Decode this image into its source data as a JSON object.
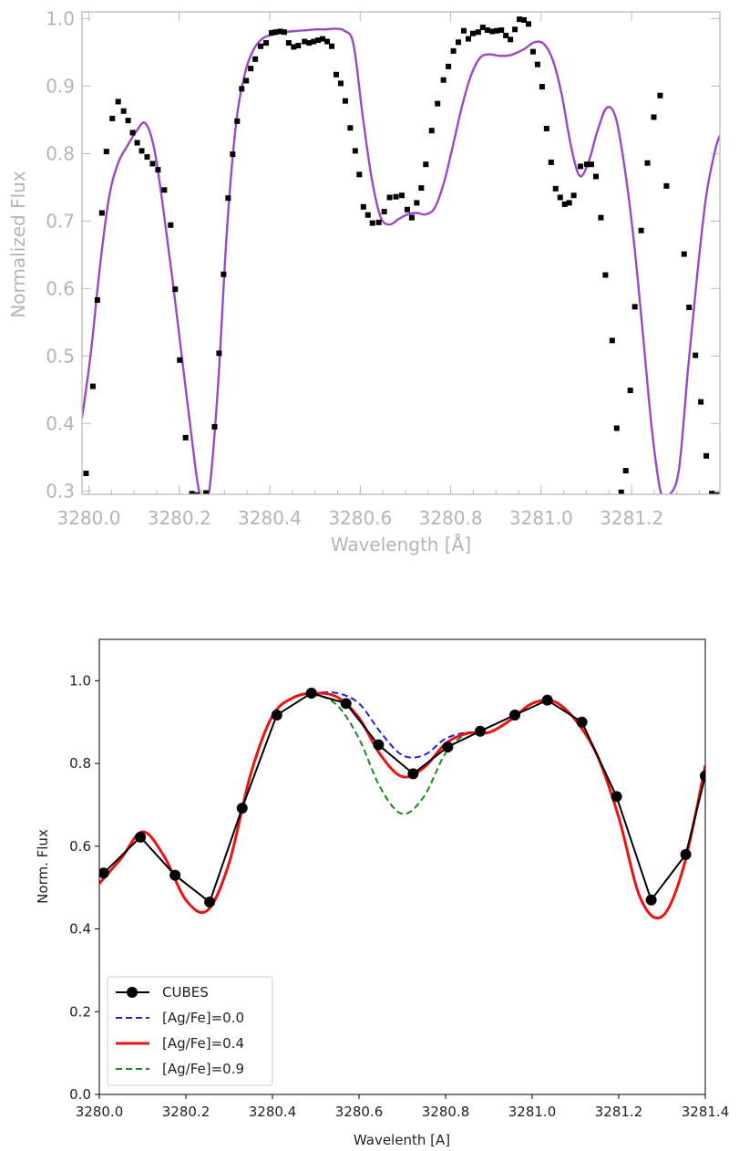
{
  "chart_data": [
    {
      "type": "line",
      "title": "",
      "xlabel": "Wavelength [Å]",
      "ylabel": "Normalized Flux",
      "xlim": [
        3279.985,
        3281.395
      ],
      "ylim": [
        0.295,
        1.01
      ],
      "xticks": [
        3280.0,
        3280.2,
        3280.4,
        3280.6,
        3280.8,
        3281.0,
        3281.2
      ],
      "xtick_labels": [
        "3280.0",
        "3280.2",
        "3280.4",
        "3280.6",
        "3280.8",
        "3281.0",
        "3281.2"
      ],
      "yticks": [
        0.3,
        0.4,
        0.5,
        0.6,
        0.7,
        0.8,
        0.9,
        1.0
      ],
      "ytick_labels": [
        "0.3",
        "0.4",
        "0.5",
        "0.6",
        "0.7",
        "0.8",
        "0.9",
        "1.0"
      ],
      "colors": {
        "observed": "#000000",
        "model": "#9a48c4",
        "model_thin": "#d88888",
        "axis": "#bbbbbb"
      },
      "series": [
        {
          "role": "observed",
          "x": [
            3279.994,
            3280.009,
            3280.019,
            3280.029,
            3280.039,
            3280.052,
            3280.065,
            3280.077,
            3280.087,
            3280.097,
            3280.107,
            3280.117,
            3280.129,
            3280.141,
            3280.153,
            3280.167,
            3280.181,
            3280.191,
            3280.201,
            3280.214,
            3280.228,
            3280.239,
            3280.259,
            3280.278,
            3280.288,
            3280.298,
            3280.308,
            3280.318,
            3280.328,
            3280.338,
            3280.348,
            3280.358,
            3280.368,
            3280.38,
            3280.392,
            3280.404,
            3280.413,
            3280.423,
            3280.432,
            3280.442,
            3280.453,
            3280.463,
            3280.477,
            3280.487,
            3280.497,
            3280.507,
            3280.517,
            3280.527,
            3280.537,
            3280.547,
            3280.557,
            3280.567,
            3280.578,
            3280.589,
            3280.598,
            3280.607,
            3280.617,
            3280.627,
            3280.641,
            3280.653,
            3280.665,
            3280.679,
            3280.692,
            3280.704,
            3280.714,
            3280.725,
            3280.735,
            3280.745,
            3280.758,
            3280.771,
            3280.784,
            3280.795,
            3280.806,
            3280.817,
            3280.829,
            3280.839,
            3280.849,
            3280.861,
            3280.871,
            3280.881,
            3280.892,
            3280.902,
            3280.912,
            3280.922,
            3280.932,
            3280.942,
            3280.952,
            3280.962,
            3280.972,
            3280.982,
            3280.992,
            3281.002,
            3281.012,
            3281.022,
            3281.032,
            3281.042,
            3281.052,
            3281.062,
            3281.072,
            3281.087,
            3281.101,
            3281.111,
            3281.121,
            3281.132,
            3281.142,
            3281.157,
            3281.167,
            3281.177,
            3281.187,
            3281.197,
            3281.207,
            3281.221,
            3281.235,
            3281.249,
            3281.263,
            3281.277,
            3281.316,
            3281.327,
            3281.341,
            3281.353,
            3281.365,
            3281.377,
            3281.389
          ],
          "y": [
            0.326,
            0.455,
            0.583,
            0.712,
            0.803,
            0.852,
            0.877,
            0.863,
            0.849,
            0.831,
            0.816,
            0.804,
            0.795,
            0.785,
            0.776,
            0.746,
            0.694,
            0.599,
            0.494,
            0.379,
            0.296,
            0.294,
            0.297,
            0.395,
            0.504,
            0.621,
            0.734,
            0.799,
            0.848,
            0.896,
            0.908,
            0.926,
            0.94,
            0.959,
            0.964,
            0.979,
            0.98,
            0.981,
            0.98,
            0.964,
            0.958,
            0.96,
            0.966,
            0.964,
            0.966,
            0.968,
            0.97,
            0.966,
            0.959,
            0.917,
            0.904,
            0.878,
            0.838,
            0.804,
            0.769,
            0.721,
            0.709,
            0.697,
            0.698,
            0.714,
            0.735,
            0.736,
            0.738,
            0.717,
            0.705,
            0.727,
            0.749,
            0.784,
            0.834,
            0.874,
            0.909,
            0.929,
            0.952,
            0.965,
            0.982,
            0.97,
            0.978,
            0.98,
            0.987,
            0.983,
            0.981,
            0.982,
            0.983,
            0.975,
            0.969,
            0.984,
            0.999,
            0.998,
            0.992,
            0.951,
            0.932,
            0.899,
            0.837,
            0.787,
            0.748,
            0.735,
            0.725,
            0.727,
            0.738,
            0.781,
            0.784,
            0.784,
            0.766,
            0.705,
            0.62,
            0.523,
            0.393,
            0.298,
            0.33,
            0.449,
            0.573,
            0.686,
            0.786,
            0.854,
            0.886,
            0.752,
            0.651,
            0.572,
            0.501,
            0.432,
            0.352,
            0.296,
            0.294
          ]
        },
        {
          "role": "model",
          "x": [
            3279.985,
            3280.005,
            3280.025,
            3280.045,
            3280.065,
            3280.085,
            3280.105,
            3280.125,
            3280.145,
            3280.165,
            3280.185,
            3280.205,
            3280.225,
            3280.245,
            3280.265,
            3280.285,
            3280.305,
            3280.325,
            3280.345,
            3280.365,
            3280.385,
            3280.405,
            3280.425,
            3280.445,
            3280.465,
            3280.485,
            3280.505,
            3280.525,
            3280.545,
            3280.565,
            3280.585,
            3280.605,
            3280.625,
            3280.645,
            3280.665,
            3280.685,
            3280.705,
            3280.725,
            3280.745,
            3280.765,
            3280.785,
            3280.805,
            3280.825,
            3280.845,
            3280.865,
            3280.885,
            3280.905,
            3280.925,
            3280.945,
            3280.965,
            3280.985,
            3281.005,
            3281.025,
            3281.045,
            3281.065,
            3281.085,
            3281.105,
            3281.125,
            3281.145,
            3281.165,
            3281.185,
            3281.205,
            3281.225,
            3281.245,
            3281.265,
            3281.285,
            3281.305,
            3281.325,
            3281.345,
            3281.365,
            3281.385,
            3281.395
          ],
          "y": [
            0.408,
            0.507,
            0.635,
            0.736,
            0.786,
            0.811,
            0.833,
            0.845,
            0.806,
            0.716,
            0.613,
            0.503,
            0.393,
            0.296,
            0.295,
            0.448,
            0.683,
            0.841,
            0.918,
            0.955,
            0.971,
            0.976,
            0.979,
            0.981,
            0.982,
            0.983,
            0.984,
            0.984,
            0.985,
            0.982,
            0.962,
            0.858,
            0.765,
            0.706,
            0.695,
            0.703,
            0.71,
            0.712,
            0.71,
            0.72,
            0.757,
            0.812,
            0.87,
            0.916,
            0.942,
            0.947,
            0.945,
            0.945,
            0.949,
            0.956,
            0.965,
            0.963,
            0.94,
            0.889,
            0.814,
            0.767,
            0.788,
            0.835,
            0.868,
            0.853,
            0.777,
            0.669,
            0.532,
            0.39,
            0.296,
            0.295,
            0.334,
            0.483,
            0.621,
            0.738,
            0.806,
            0.827
          ]
        }
      ]
    },
    {
      "type": "line",
      "title": "",
      "xlabel": "Wavelenth [A]",
      "ylabel": "Norm. Flux",
      "xlim": [
        3280.0,
        3281.4
      ],
      "ylim": [
        0.0,
        1.1
      ],
      "xticks": [
        3280.0,
        3280.2,
        3280.4,
        3280.6,
        3280.8,
        3281.0,
        3281.2,
        3281.4
      ],
      "xtick_labels": [
        "3280.0",
        "3280.2",
        "3280.4",
        "3280.6",
        "3280.8",
        "3281.0",
        "3281.2",
        "3281.4"
      ],
      "yticks": [
        0.0,
        0.2,
        0.4,
        0.6,
        0.8,
        1.0
      ],
      "ytick_labels": [
        "0.0",
        "0.2",
        "0.4",
        "0.6",
        "0.8",
        "1.0"
      ],
      "legend": "lower-left",
      "series": [
        {
          "name": "CUBES",
          "style": "line+markers",
          "color": "#000000",
          "x": [
            3280.01,
            3280.095,
            3280.175,
            3280.255,
            3280.33,
            3280.41,
            3280.49,
            3280.57,
            3280.645,
            3280.725,
            3280.805,
            3280.88,
            3280.96,
            3281.035,
            3281.115,
            3281.195,
            3281.275,
            3281.355,
            3281.4
          ],
          "y": [
            0.535,
            0.622,
            0.53,
            0.465,
            0.692,
            0.917,
            0.97,
            0.945,
            0.845,
            0.775,
            0.84,
            0.878,
            0.917,
            0.953,
            0.9,
            0.72,
            0.47,
            0.58,
            0.77
          ]
        },
        {
          "name": "[Ag/Fe]=0.0",
          "style": "dashed",
          "color": "#1f1fdd",
          "x": [
            3280.0,
            3280.05,
            3280.1,
            3280.15,
            3280.2,
            3280.25,
            3280.3,
            3280.35,
            3280.4,
            3280.45,
            3280.5,
            3280.55,
            3280.6,
            3280.65,
            3280.7,
            3280.75,
            3280.8,
            3280.85,
            3280.9,
            3280.95,
            3281.0,
            3281.05,
            3281.1,
            3281.15,
            3281.2,
            3281.25,
            3281.3,
            3281.35,
            3281.4
          ],
          "y": [
            0.51,
            0.57,
            0.635,
            0.575,
            0.47,
            0.445,
            0.56,
            0.775,
            0.915,
            0.96,
            0.97,
            0.97,
            0.945,
            0.875,
            0.82,
            0.82,
            0.86,
            0.875,
            0.875,
            0.905,
            0.945,
            0.95,
            0.905,
            0.82,
            0.67,
            0.475,
            0.43,
            0.55,
            0.795
          ]
        },
        {
          "name": "[Ag/Fe]=0.4",
          "style": "solid",
          "color": "#ee1111",
          "x": [
            3280.0,
            3280.05,
            3280.1,
            3280.15,
            3280.2,
            3280.25,
            3280.3,
            3280.35,
            3280.4,
            3280.45,
            3280.5,
            3280.55,
            3280.6,
            3280.65,
            3280.7,
            3280.75,
            3280.8,
            3280.85,
            3280.9,
            3280.95,
            3281.0,
            3281.05,
            3281.1,
            3281.15,
            3281.2,
            3281.25,
            3281.3,
            3281.35,
            3281.4
          ],
          "y": [
            0.51,
            0.57,
            0.635,
            0.575,
            0.47,
            0.445,
            0.56,
            0.775,
            0.915,
            0.96,
            0.97,
            0.96,
            0.91,
            0.82,
            0.768,
            0.79,
            0.848,
            0.873,
            0.875,
            0.905,
            0.945,
            0.95,
            0.905,
            0.82,
            0.67,
            0.475,
            0.43,
            0.55,
            0.795
          ]
        },
        {
          "name": "[Ag/Fe]=0.9",
          "style": "dashed",
          "color": "#1a8a1a",
          "x": [
            3280.0,
            3280.05,
            3280.1,
            3280.15,
            3280.2,
            3280.25,
            3280.3,
            3280.35,
            3280.4,
            3280.45,
            3280.5,
            3280.55,
            3280.6,
            3280.65,
            3280.7,
            3280.75,
            3280.8,
            3280.85,
            3280.9,
            3280.95,
            3281.0,
            3281.05,
            3281.1,
            3281.15,
            3281.2,
            3281.25,
            3281.3,
            3281.35,
            3281.4
          ],
          "y": [
            0.51,
            0.57,
            0.635,
            0.575,
            0.47,
            0.445,
            0.56,
            0.775,
            0.915,
            0.96,
            0.965,
            0.94,
            0.86,
            0.74,
            0.678,
            0.72,
            0.825,
            0.872,
            0.875,
            0.905,
            0.945,
            0.95,
            0.905,
            0.82,
            0.67,
            0.475,
            0.43,
            0.55,
            0.795
          ]
        }
      ]
    }
  ]
}
